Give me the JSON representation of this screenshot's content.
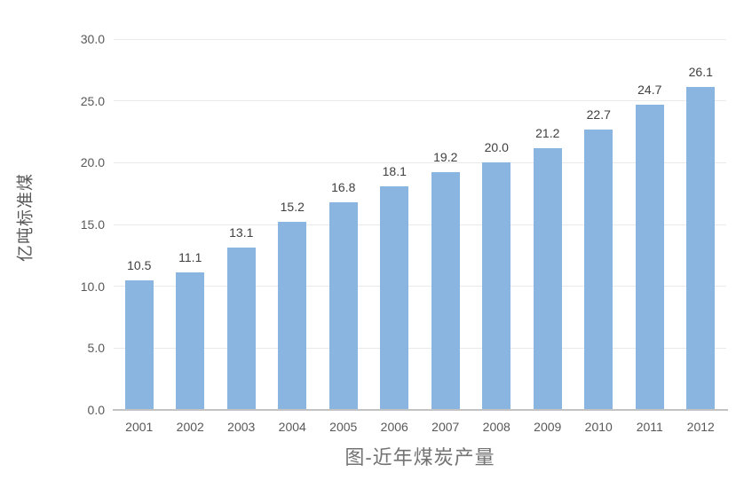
{
  "chart_data": {
    "type": "bar",
    "title": "图-近年煤炭产量",
    "xlabel": "",
    "ylabel": "亿吨标准煤",
    "categories": [
      "2001",
      "2002",
      "2003",
      "2004",
      "2005",
      "2006",
      "2007",
      "2008",
      "2009",
      "2010",
      "2011",
      "2012"
    ],
    "values": [
      10.5,
      11.1,
      13.1,
      15.2,
      16.8,
      18.1,
      19.2,
      20.0,
      21.2,
      22.7,
      24.7,
      26.1
    ],
    "value_labels": [
      "10.5",
      "11.1",
      "13.1",
      "15.2",
      "16.8",
      "18.1",
      "19.2",
      "20.0",
      "21.2",
      "22.7",
      "24.7",
      "26.1"
    ],
    "ylim": [
      0,
      30
    ],
    "y_tick_step": 5,
    "y_tick_labels": [
      "0.0",
      "5.0",
      "10.0",
      "15.0",
      "20.0",
      "25.0",
      "30.0"
    ],
    "grid": "horizontal",
    "legend": "none",
    "colors": {
      "bar_fill": "#8ab5e0",
      "gridline": "#e9e9e9",
      "axis_line": "#c3c3c3",
      "tick_text": "#595959",
      "value_label_text": "#404040",
      "title_text": "#737373"
    }
  }
}
